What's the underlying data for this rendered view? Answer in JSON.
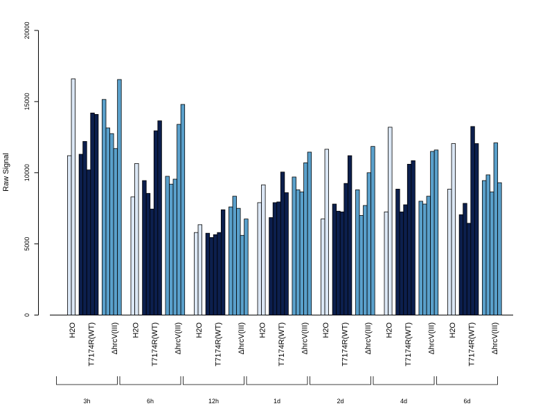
{
  "chart_data": {
    "type": "bar",
    "ylabel": "Raw Signal",
    "ylim": [
      0,
      20000
    ],
    "yticks": [
      0,
      5000,
      10000,
      15000,
      20000
    ],
    "treatment_labels": [
      "H2O",
      "T7174R(WT)",
      "ΔhrcV(III)"
    ],
    "treatment_colors": [
      "#dbe7f5",
      "#0c1f4d",
      "#5aa0cb"
    ],
    "groups": [
      {
        "label": "3h",
        "values": [
          [
            11200,
            16600
          ],
          [
            11300,
            12200,
            10200,
            14200,
            14100
          ],
          [
            15150,
            13150,
            12750,
            11700,
            16550
          ]
        ]
      },
      {
        "label": "6h",
        "values": [
          [
            8300,
            10650
          ],
          [
            9450,
            8550,
            7450,
            12950,
            13650
          ],
          [
            9750,
            9200,
            9550,
            13400,
            14800
          ]
        ]
      },
      {
        "label": "12h",
        "values": [
          [
            5800,
            6350
          ],
          [
            5750,
            5450,
            5650,
            5800,
            7400
          ],
          [
            7600,
            8350,
            7500,
            5600,
            6750
          ]
        ]
      },
      {
        "label": "1d",
        "values": [
          [
            7900,
            9150
          ],
          [
            6850,
            7900,
            7950,
            10050,
            8600
          ],
          [
            9700,
            8800,
            8650,
            10700,
            11450
          ]
        ]
      },
      {
        "label": "2d",
        "values": [
          [
            6750,
            11650
          ],
          [
            7800,
            7300,
            7250,
            9250,
            11200
          ],
          [
            8800,
            7000,
            7700,
            10000,
            11850
          ]
        ]
      },
      {
        "label": "4d",
        "values": [
          [
            7250,
            13200
          ],
          [
            8850,
            7250,
            7750,
            10600,
            10850
          ],
          [
            8000,
            7800,
            8350,
            11500,
            11600
          ]
        ]
      },
      {
        "label": "6d",
        "values": [
          [
            8850,
            12050
          ],
          [
            7050,
            7850,
            6450,
            13250,
            12050
          ],
          [
            9450,
            9850,
            8650,
            12100,
            9300
          ]
        ]
      }
    ]
  }
}
